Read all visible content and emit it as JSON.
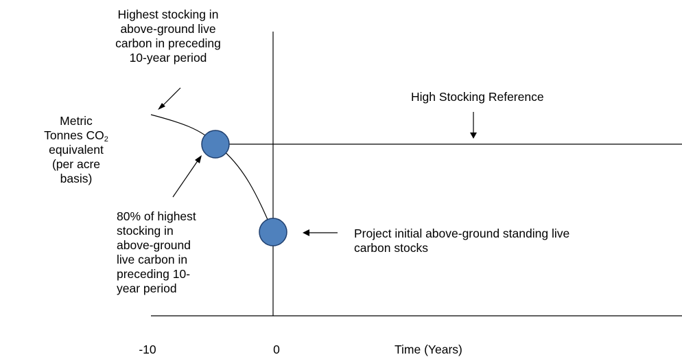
{
  "annotations": {
    "top_left": [
      "Highest stocking in",
      "above-ground live",
      "carbon in preceding",
      "10-year period"
    ],
    "high_stocking": "High Stocking Reference",
    "y_axis_label": {
      "line1": "Metric",
      "line2_prefix": "Tonnes CO",
      "line2_subscript": "2",
      "line3": "equivalent",
      "line4": "(per acre",
      "line5": "basis)"
    },
    "eighty_percent": [
      "80% of highest",
      "stocking in",
      "above-ground",
      "live carbon in",
      "preceding 10-",
      "year period"
    ],
    "project_initial": [
      "Project initial above-ground standing live",
      "carbon stocks"
    ]
  },
  "x_axis": {
    "tick_minus10": "-10",
    "tick_zero": "0",
    "title": "Time (Years)"
  },
  "colors": {
    "marker_fill": "#4f81bd",
    "marker_stroke": "#1f3f6e",
    "line": "#000000"
  }
}
